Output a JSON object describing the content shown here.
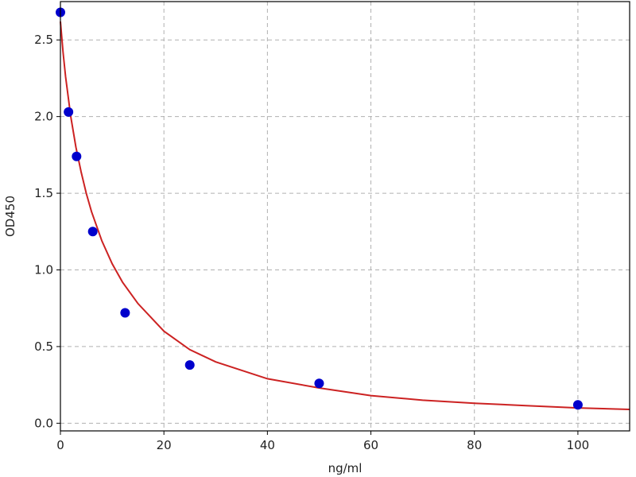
{
  "chart_data": {
    "type": "scatter",
    "xlabel": "ng/ml",
    "ylabel": "OD450",
    "xlim": [
      0,
      110
    ],
    "ylim": [
      -0.05,
      2.75
    ],
    "xticks": [
      0,
      20,
      40,
      60,
      80,
      100
    ],
    "xtick_labels": [
      "0",
      "20",
      "40",
      "60",
      "80",
      "100"
    ],
    "yticks": [
      0.0,
      0.5,
      1.0,
      1.5,
      2.0,
      2.5
    ],
    "ytick_labels": [
      "0.0",
      "0.5",
      "1.0",
      "1.5",
      "2.0",
      "2.5"
    ],
    "grid": true,
    "series": [
      {
        "kind": "points",
        "color": "#0000cc",
        "x": [
          0,
          1.56,
          3.12,
          6.25,
          12.5,
          25,
          50,
          100
        ],
        "y": [
          2.68,
          2.03,
          1.74,
          1.25,
          0.72,
          0.38,
          0.26,
          0.12
        ]
      },
      {
        "kind": "fit-curve",
        "color": "#cc2222",
        "x": [
          0,
          0.5,
          1,
          2,
          3,
          4,
          5,
          6,
          8,
          10,
          12,
          15,
          20,
          25,
          30,
          40,
          50,
          60,
          70,
          80,
          90,
          100,
          110
        ],
        "y": [
          2.62,
          2.42,
          2.26,
          2.0,
          1.8,
          1.64,
          1.5,
          1.38,
          1.19,
          1.04,
          0.92,
          0.78,
          0.6,
          0.48,
          0.4,
          0.29,
          0.23,
          0.18,
          0.15,
          0.13,
          0.115,
          0.1,
          0.09
        ]
      }
    ]
  }
}
